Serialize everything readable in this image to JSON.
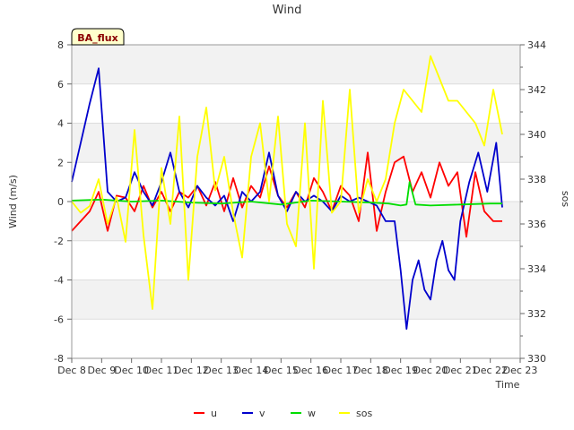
{
  "chart_data": {
    "type": "line",
    "title": "Wind",
    "badge": "BA_flux",
    "xlabel": "Time",
    "ylabel": "Wind (m/s)",
    "y2label": "sos",
    "xlim": [
      8,
      23
    ],
    "ylim": [
      -8,
      8
    ],
    "y2lim": [
      330,
      344
    ],
    "x_ticks": [
      {
        "value": 8,
        "label": "Dec 8"
      },
      {
        "value": 9,
        "label": "Dec 9"
      },
      {
        "value": 10,
        "label": "Dec 10"
      },
      {
        "value": 11,
        "label": "Dec 11"
      },
      {
        "value": 12,
        "label": "Dec 12"
      },
      {
        "value": 13,
        "label": "Dec 13"
      },
      {
        "value": 14,
        "label": "Dec 14"
      },
      {
        "value": 15,
        "label": "Dec 15"
      },
      {
        "value": 16,
        "label": "Dec 16"
      },
      {
        "value": 17,
        "label": "Dec 17"
      },
      {
        "value": 18,
        "label": "Dec 18"
      },
      {
        "value": 19,
        "label": "Dec 19"
      },
      {
        "value": 20,
        "label": "Dec 20"
      },
      {
        "value": 21,
        "label": "Dec 21"
      },
      {
        "value": 22,
        "label": "Dec 22"
      },
      {
        "value": 23,
        "label": "Dec 23"
      }
    ],
    "y_ticks": [
      -8,
      -6,
      -4,
      -2,
      0,
      2,
      4,
      6,
      8
    ],
    "y2_ticks": [
      330,
      332,
      334,
      336,
      338,
      340,
      342,
      344
    ],
    "grid": true,
    "legend_position": "bottom-center",
    "series": [
      {
        "name": "u",
        "axis": "left",
        "color": "#ff0000",
        "x": [
          8.0,
          8.3,
          8.6,
          8.9,
          9.2,
          9.5,
          9.8,
          10.1,
          10.4,
          10.7,
          11.0,
          11.3,
          11.6,
          11.9,
          12.2,
          12.5,
          12.8,
          13.1,
          13.4,
          13.7,
          14.0,
          14.3,
          14.6,
          14.9,
          15.2,
          15.5,
          15.8,
          16.1,
          16.4,
          16.7,
          17.0,
          17.3,
          17.6,
          17.9,
          18.2,
          18.5,
          18.8,
          19.1,
          19.4,
          19.7,
          20.0,
          20.3,
          20.6,
          20.9,
          21.2,
          21.5,
          21.8,
          22.1,
          22.4
        ],
        "y": [
          -1.5,
          -1.0,
          -0.5,
          0.5,
          -1.5,
          0.3,
          0.2,
          -0.5,
          0.8,
          -0.3,
          0.5,
          -0.5,
          0.5,
          0.2,
          0.8,
          -0.2,
          1.0,
          -0.5,
          1.2,
          -0.3,
          0.8,
          0.2,
          1.8,
          0.3,
          -0.3,
          0.5,
          -0.3,
          1.2,
          0.5,
          -0.5,
          0.8,
          0.3,
          -1.0,
          2.5,
          -1.5,
          0.5,
          2.0,
          2.3,
          0.5,
          1.5,
          0.2,
          2.0,
          0.8,
          1.5,
          -1.8,
          1.5,
          -0.5,
          -1.0,
          -1.0
        ]
      },
      {
        "name": "v",
        "axis": "left",
        "color": "#0000cc",
        "x": [
          8.0,
          8.3,
          8.6,
          8.9,
          9.2,
          9.5,
          9.8,
          10.1,
          10.4,
          10.7,
          11.0,
          11.3,
          11.6,
          11.9,
          12.2,
          12.5,
          12.8,
          13.1,
          13.4,
          13.7,
          14.0,
          14.3,
          14.6,
          14.9,
          15.2,
          15.5,
          15.8,
          16.1,
          16.4,
          16.7,
          17.0,
          17.3,
          17.6,
          17.9,
          18.2,
          18.5,
          18.8,
          19.0,
          19.2,
          19.4,
          19.6,
          19.8,
          20.0,
          20.2,
          20.4,
          20.6,
          20.8,
          21.0,
          21.3,
          21.6,
          21.9,
          22.2,
          22.4
        ],
        "y": [
          1.0,
          3.0,
          5.0,
          6.8,
          0.5,
          0.0,
          0.2,
          1.5,
          0.5,
          -0.2,
          1.0,
          2.5,
          0.5,
          -0.3,
          0.8,
          0.2,
          -0.2,
          0.3,
          -1.0,
          0.5,
          0.0,
          0.5,
          2.5,
          0.3,
          -0.5,
          0.5,
          0.0,
          0.3,
          0.0,
          -0.5,
          0.3,
          0.0,
          0.2,
          0.0,
          -0.2,
          -1.0,
          -1.0,
          -3.5,
          -6.5,
          -4.0,
          -3.0,
          -4.5,
          -5.0,
          -3.0,
          -2.0,
          -3.5,
          -4.0,
          -1.0,
          1.0,
          2.5,
          0.5,
          3.0,
          -0.3
        ]
      },
      {
        "name": "w",
        "axis": "left",
        "color": "#00dd00",
        "x": [
          8.0,
          9.0,
          10.0,
          11.0,
          12.0,
          13.0,
          14.0,
          15.0,
          16.0,
          17.0,
          18.0,
          18.6,
          19.0,
          19.2,
          19.3,
          19.5,
          20.0,
          21.0,
          22.0,
          22.4
        ],
        "y": [
          0.05,
          0.1,
          0.0,
          0.05,
          -0.05,
          -0.1,
          0.0,
          -0.15,
          0.05,
          0.0,
          -0.05,
          -0.1,
          -0.2,
          -0.15,
          1.0,
          -0.15,
          -0.2,
          -0.15,
          -0.1,
          -0.1
        ]
      },
      {
        "name": "sos",
        "axis": "right",
        "color": "#ffff00",
        "x": [
          8.0,
          8.3,
          8.6,
          8.9,
          9.2,
          9.5,
          9.8,
          10.1,
          10.4,
          10.7,
          11.0,
          11.3,
          11.6,
          11.9,
          12.2,
          12.5,
          12.8,
          13.1,
          13.4,
          13.7,
          14.0,
          14.3,
          14.6,
          14.9,
          15.2,
          15.5,
          15.8,
          16.1,
          16.4,
          16.7,
          17.0,
          17.3,
          17.6,
          17.9,
          18.2,
          18.5,
          18.8,
          19.1,
          19.4,
          19.7,
          20.0,
          20.3,
          20.6,
          20.9,
          21.2,
          21.5,
          21.8,
          22.1,
          22.4
        ],
        "y": [
          337,
          336.5,
          336.8,
          338,
          336,
          337.2,
          335.2,
          340.2,
          335.5,
          332.2,
          338.5,
          336,
          340.8,
          333.5,
          339,
          341.2,
          337.5,
          339,
          336.5,
          334.5,
          339,
          340.5,
          337,
          340.8,
          336,
          335,
          340.5,
          334,
          341.5,
          336.5,
          337,
          342,
          336.5,
          338,
          337,
          338,
          340.5,
          342,
          341.5,
          341,
          343.5,
          342.5,
          341.5,
          341.5,
          341,
          340.5,
          339.5,
          342,
          340
        ]
      }
    ]
  }
}
